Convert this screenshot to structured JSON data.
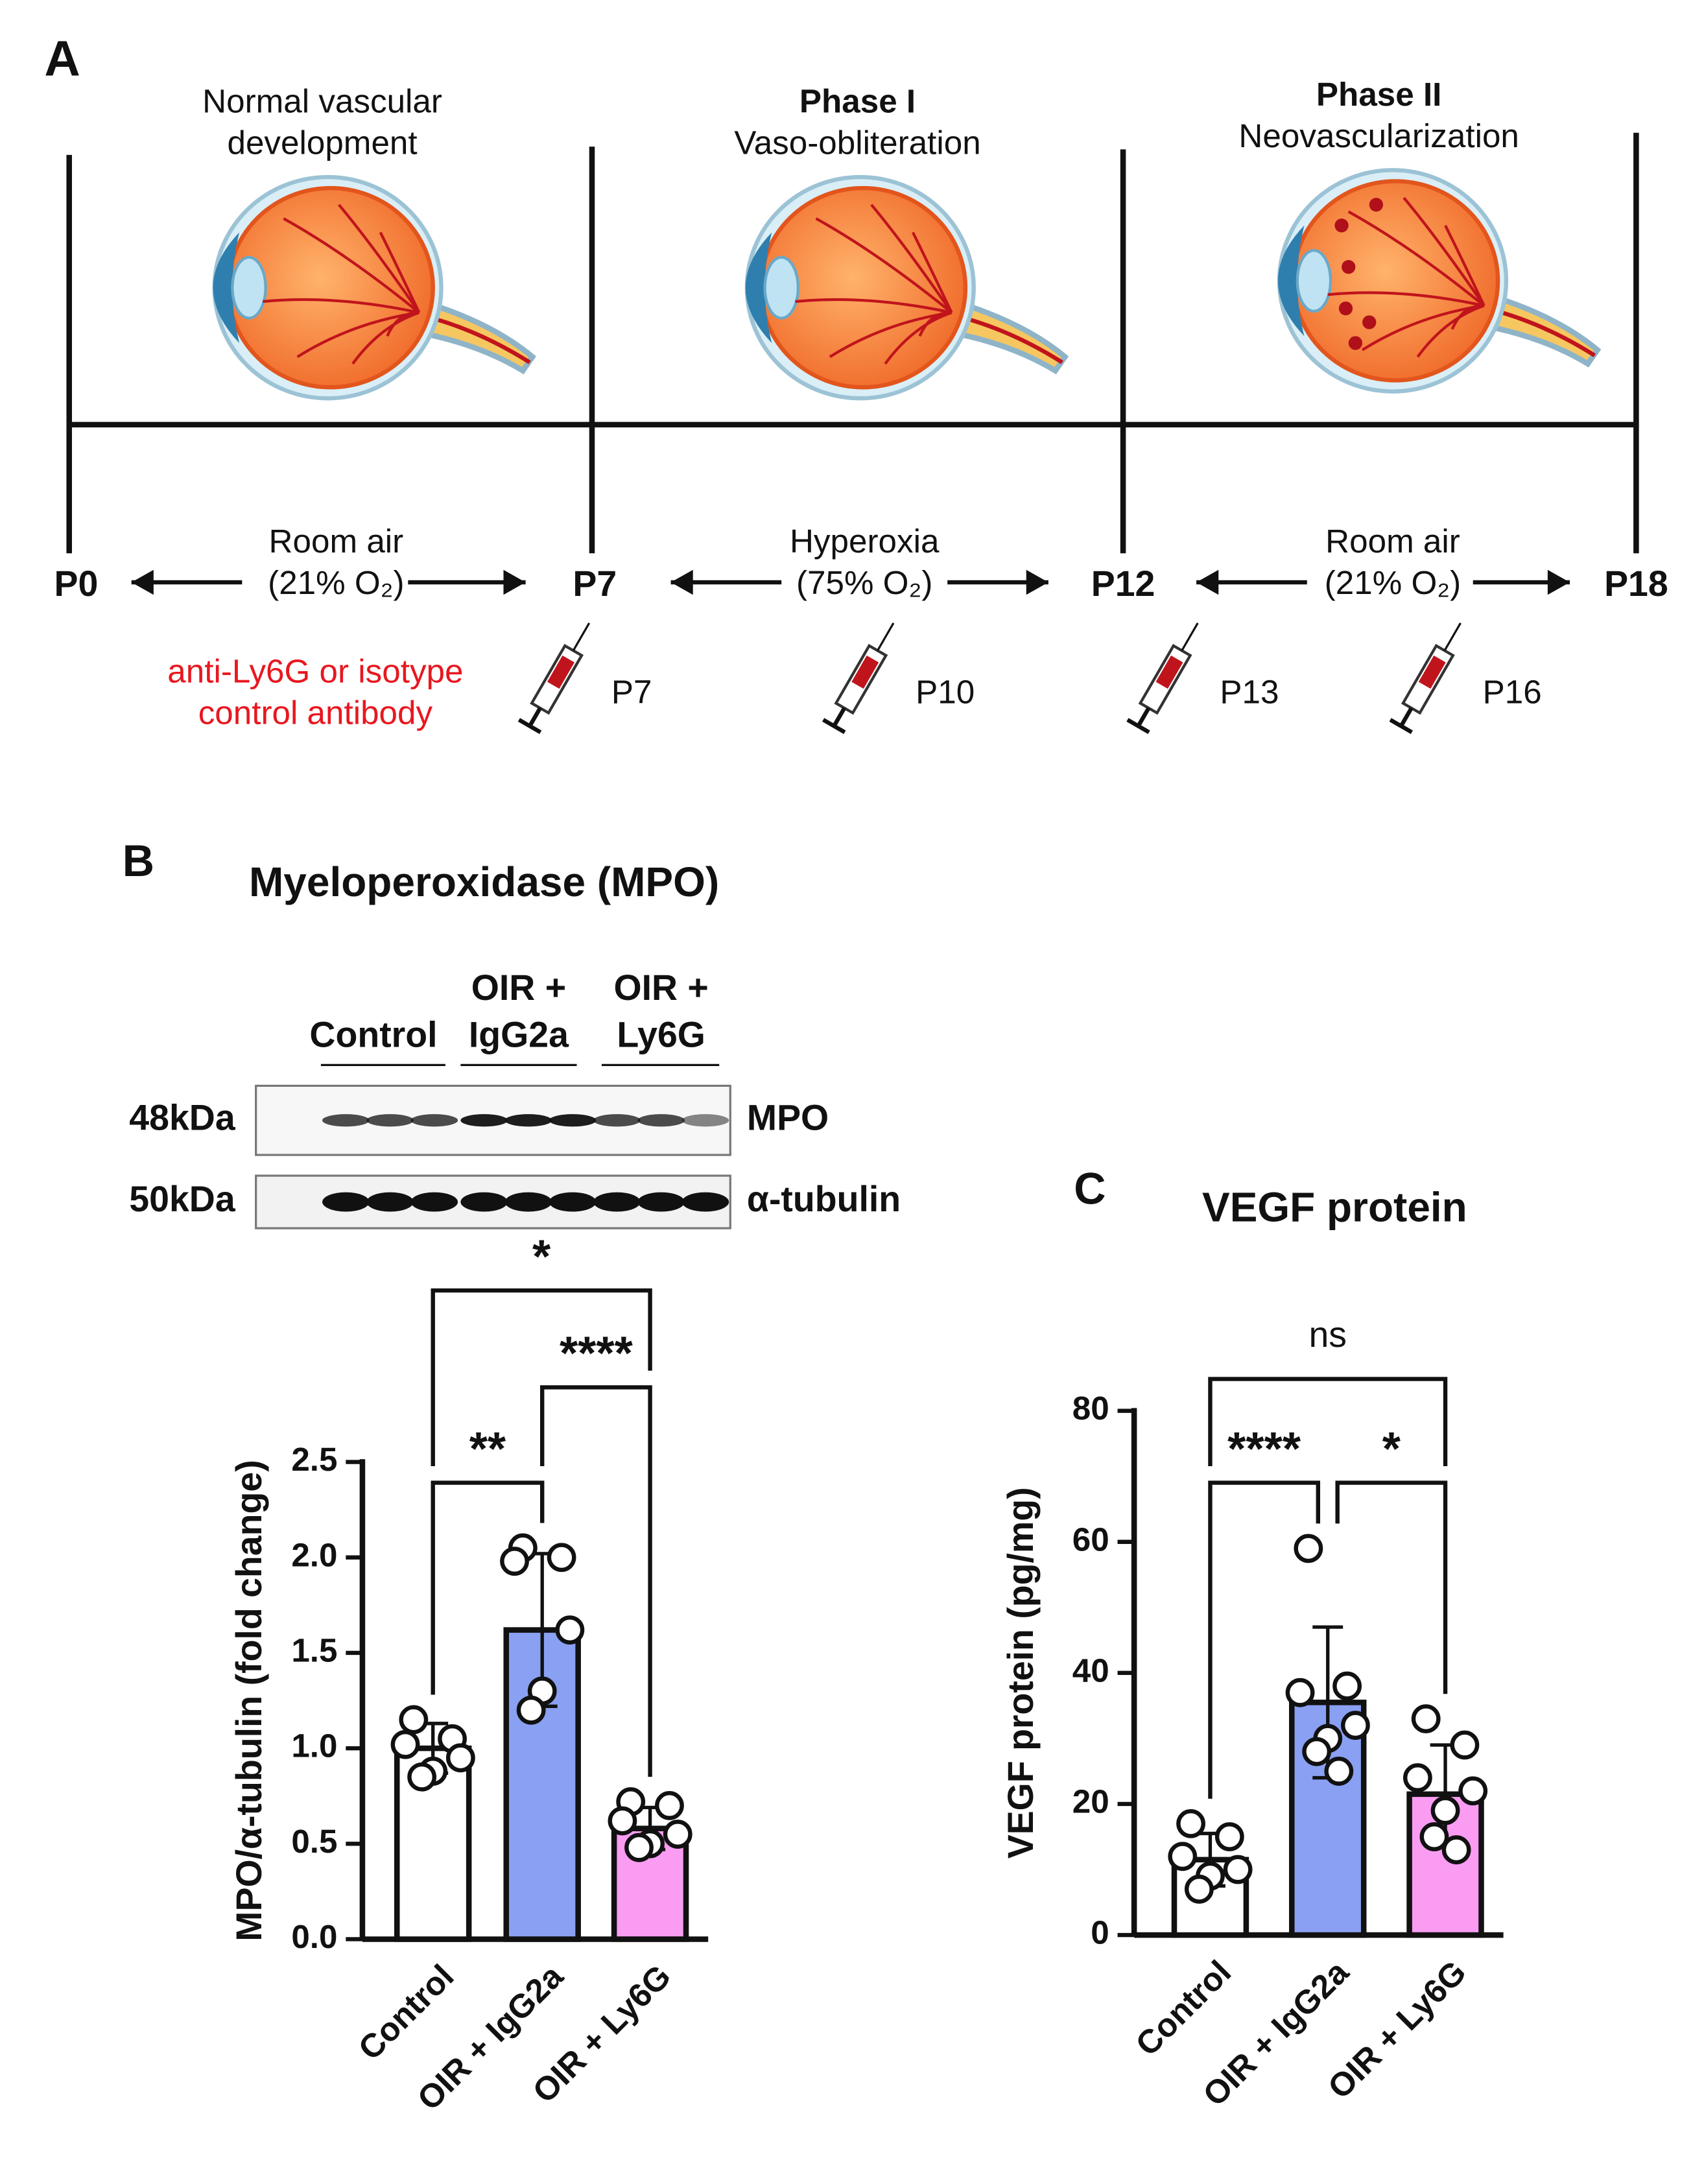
{
  "panel_a": {
    "label": "A",
    "phases": [
      {
        "lines": [
          "Normal vascular",
          "development"
        ]
      },
      {
        "title": "Phase I",
        "lines": [
          "Vaso-obliteration"
        ]
      },
      {
        "title": "Phase II",
        "lines": [
          "Neovascularization"
        ]
      }
    ],
    "timepoints": [
      "P0",
      "P7",
      "P12",
      "P18"
    ],
    "conditions": [
      {
        "name": "Room air",
        "detail": "(21% O₂)"
      },
      {
        "name": "Hyperoxia",
        "detail": "(75% O₂)"
      },
      {
        "name": "Room air",
        "detail": "(21% O₂)"
      }
    ],
    "treatment": [
      "anti-Ly6G or isotype",
      "control antibody"
    ],
    "injections": [
      "P7",
      "P10",
      "P13",
      "P16"
    ]
  },
  "panel_b": {
    "label": "B",
    "title": "Myeloperoxidase (MPO)",
    "blot": {
      "groups": [
        [
          "Control"
        ],
        [
          "OIR +",
          "IgG2a"
        ],
        [
          "OIR +",
          "Ly6G"
        ]
      ],
      "rows": [
        {
          "marker": "48kDa",
          "name": "MPO"
        },
        {
          "marker": "50kDa",
          "name": "α-tubulin"
        }
      ]
    }
  },
  "chart_data": [
    {
      "type": "bar",
      "ylabel": "MPO/α-tubulin (fold change)",
      "categories": [
        "Control",
        "OIR + IgG2a",
        "OIR + Ly6G"
      ],
      "values": [
        1.0,
        1.62,
        0.58
      ],
      "errors": [
        0.13,
        0.4,
        0.11
      ],
      "points": [
        [
          1.15,
          1.05,
          1.02,
          0.95,
          0.88,
          0.85
        ],
        [
          2.05,
          2.0,
          1.98,
          1.62,
          1.3,
          1.2
        ],
        [
          0.72,
          0.7,
          0.62,
          0.55,
          0.5,
          0.48
        ]
      ],
      "colors": [
        "#ffffff",
        "#8aa0f2",
        "#f99cf2"
      ],
      "ylim": [
        0,
        2.5
      ],
      "yticks": [
        {
          "value": 0,
          "label": "0.0"
        },
        {
          "value": 0.5,
          "label": "0.5"
        },
        {
          "value": 1,
          "label": "1.0"
        },
        {
          "value": 1.5,
          "label": "1.5"
        },
        {
          "value": 2,
          "label": "2.0"
        },
        {
          "value": 2.5,
          "label": "2.5"
        }
      ],
      "annotations": [
        {
          "from": 0,
          "to": 1,
          "text": "**"
        },
        {
          "from": 1,
          "to": 2,
          "text": "****"
        },
        {
          "from": 0,
          "to": 2,
          "text": "*"
        }
      ]
    },
    {
      "type": "bar",
      "label": "C",
      "title": "VEGF protein",
      "ylabel": "VEGF protein (pg/mg)",
      "categories": [
        "Control",
        "OIR + IgG2a",
        "OIR + Ly6G"
      ],
      "values": [
        11.5,
        35.5,
        21.5
      ],
      "errors": [
        4,
        11.5,
        7.5
      ],
      "points": [
        [
          17,
          15,
          12,
          10,
          9,
          7
        ],
        [
          59,
          38,
          37,
          32,
          30,
          28,
          25
        ],
        [
          33,
          29,
          24,
          22,
          19,
          15,
          13
        ]
      ],
      "colors": [
        "#ffffff",
        "#8aa0f2",
        "#f99cf2"
      ],
      "ylim": [
        0,
        80
      ],
      "yticks": [
        0,
        20,
        40,
        60,
        80
      ],
      "annotations": [
        {
          "from": 0,
          "to": 1,
          "text": "****"
        },
        {
          "from": 1,
          "to": 2,
          "text": "*"
        },
        {
          "from": 0,
          "to": 2,
          "text": "ns"
        }
      ]
    }
  ]
}
